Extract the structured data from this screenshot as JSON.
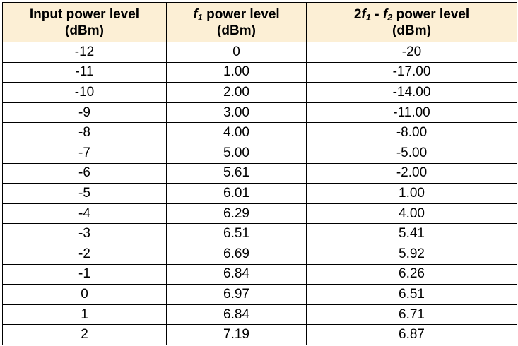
{
  "table": {
    "header": [
      [
        "Input power level",
        "(dBm)"
      ],
      [
        "f",
        "1",
        " power level",
        "(dBm)"
      ],
      [
        "2",
        "f",
        "1",
        " - ",
        "f",
        "2",
        " power level",
        "(dBm)"
      ]
    ],
    "rows": [
      [
        "-12",
        "0",
        "-20"
      ],
      [
        "-11",
        "1.00",
        "-17.00"
      ],
      [
        "-10",
        "2.00",
        "-14.00"
      ],
      [
        "-9",
        "3.00",
        "-11.00"
      ],
      [
        "-8",
        "4.00",
        "-8.00"
      ],
      [
        "-7",
        "5.00",
        "-5.00"
      ],
      [
        "-6",
        "5.61",
        "-2.00"
      ],
      [
        "-5",
        "6.01",
        "1.00"
      ],
      [
        "-4",
        "6.29",
        "4.00"
      ],
      [
        "-3",
        "6.51",
        "5.41"
      ],
      [
        "-2",
        "6.69",
        "5.92"
      ],
      [
        "-1",
        "6.84",
        "6.26"
      ],
      [
        "0",
        "6.97",
        "6.51"
      ],
      [
        "1",
        "6.84",
        "6.71"
      ],
      [
        "2",
        "7.19",
        "6.87"
      ]
    ]
  }
}
